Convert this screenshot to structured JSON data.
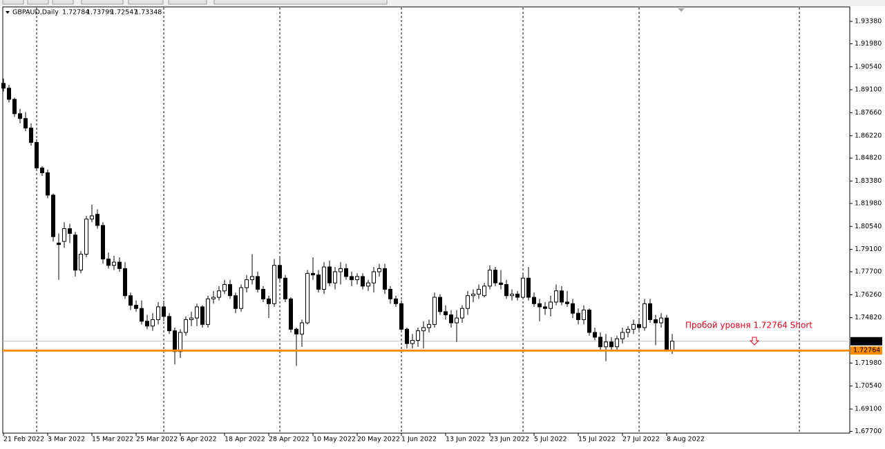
{
  "chart_data": {
    "type": "candlestick",
    "title": "GBPAUD,Daily",
    "bull_color": "#ffffff",
    "bear_color": "#000000",
    "outline_color": "#000000",
    "categories": [
      "21 Feb 2022",
      null,
      null,
      null,
      null,
      null,
      null,
      null,
      "3 Mar 2022",
      null,
      null,
      null,
      null,
      null,
      null,
      null,
      "15 Mar 2022",
      null,
      null,
      null,
      null,
      null,
      null,
      null,
      "25 Mar 2022",
      null,
      null,
      null,
      null,
      null,
      null,
      null,
      "6 Apr 2022",
      null,
      null,
      null,
      null,
      null,
      null,
      null,
      "18 Apr 2022",
      null,
      null,
      null,
      null,
      null,
      null,
      null,
      "28 Apr 2022",
      null,
      null,
      null,
      null,
      null,
      null,
      null,
      "10 May 2022",
      null,
      null,
      null,
      null,
      null,
      null,
      null,
      "20 May 2022",
      null,
      null,
      null,
      null,
      null,
      null,
      null,
      "1 Jun 2022",
      null,
      null,
      null,
      null,
      null,
      null,
      null,
      "13 Jun 2022",
      null,
      null,
      null,
      null,
      null,
      null,
      null,
      "23 Jun 2022",
      null,
      null,
      null,
      null,
      null,
      null,
      null,
      "5 Jul 2022",
      null,
      null,
      null,
      null,
      null,
      null,
      null,
      "15 Jul 2022",
      null,
      null,
      null,
      null,
      null,
      null,
      null,
      "27 Jul 2022",
      null,
      null,
      null,
      null,
      null,
      null,
      null,
      "8 Aug 2022",
      null
    ],
    "candles": [
      [
        1.895,
        1.898,
        1.89,
        1.892
      ],
      [
        1.892,
        1.894,
        1.883,
        1.885
      ],
      [
        1.885,
        1.886,
        1.874,
        1.876
      ],
      [
        1.876,
        1.879,
        1.87,
        1.873
      ],
      [
        1.873,
        1.877,
        1.865,
        1.867
      ],
      [
        1.867,
        1.87,
        1.856,
        1.858
      ],
      [
        1.858,
        1.86,
        1.84,
        1.842
      ],
      [
        1.842,
        1.843,
        1.837,
        1.839
      ],
      [
        1.839,
        1.841,
        1.823,
        1.825
      ],
      [
        1.825,
        1.826,
        1.796,
        1.799
      ],
      [
        1.795,
        1.801,
        1.772,
        1.794
      ],
      [
        1.796,
        1.808,
        1.792,
        1.804
      ],
      [
        1.804,
        1.807,
        1.795,
        1.801
      ],
      [
        1.8,
        1.802,
        1.774,
        1.778
      ],
      [
        1.778,
        1.79,
        1.776,
        1.788
      ],
      [
        1.788,
        1.812,
        1.786,
        1.81
      ],
      [
        1.81,
        1.819,
        1.808,
        1.812
      ],
      [
        1.813,
        1.816,
        1.804,
        1.806
      ],
      [
        1.806,
        1.808,
        1.782,
        1.785
      ],
      [
        1.785,
        1.789,
        1.779,
        1.781
      ],
      [
        1.781,
        1.787,
        1.778,
        1.783
      ],
      [
        1.783,
        1.786,
        1.777,
        1.779
      ],
      [
        1.779,
        1.783,
        1.76,
        1.762
      ],
      [
        1.762,
        1.764,
        1.753,
        1.756
      ],
      [
        1.756,
        1.759,
        1.752,
        1.754
      ],
      [
        1.754,
        1.759,
        1.744,
        1.746
      ],
      [
        1.746,
        1.75,
        1.741,
        1.743
      ],
      [
        1.743,
        1.751,
        1.74,
        1.747
      ],
      [
        1.747,
        1.758,
        1.744,
        1.755
      ],
      [
        1.755,
        1.759,
        1.746,
        1.749
      ],
      [
        1.749,
        1.751,
        1.738,
        1.74
      ],
      [
        1.74,
        1.742,
        1.719,
        1.727
      ],
      [
        1.727,
        1.741,
        1.723,
        1.739
      ],
      [
        1.739,
        1.749,
        1.737,
        1.747
      ],
      [
        1.747,
        1.752,
        1.743,
        1.748
      ],
      [
        1.748,
        1.757,
        1.743,
        1.755
      ],
      [
        1.755,
        1.756,
        1.742,
        1.744
      ],
      [
        1.744,
        1.762,
        1.742,
        1.76
      ],
      [
        1.76,
        1.765,
        1.757,
        1.761
      ],
      [
        1.761,
        1.768,
        1.759,
        1.765
      ],
      [
        1.765,
        1.772,
        1.763,
        1.769
      ],
      [
        1.769,
        1.772,
        1.76,
        1.762
      ],
      [
        1.762,
        1.764,
        1.751,
        1.754
      ],
      [
        1.754,
        1.769,
        1.752,
        1.767
      ],
      [
        1.767,
        1.775,
        1.764,
        1.772
      ],
      [
        1.772,
        1.788,
        1.769,
        1.774
      ],
      [
        1.774,
        1.777,
        1.764,
        1.766
      ],
      [
        1.766,
        1.768,
        1.758,
        1.76
      ],
      [
        1.76,
        1.762,
        1.748,
        1.757
      ],
      [
        1.757,
        1.785,
        1.755,
        1.781
      ],
      [
        1.781,
        1.786,
        1.771,
        1.773
      ],
      [
        1.773,
        1.775,
        1.758,
        1.76
      ],
      [
        1.76,
        1.761,
        1.739,
        1.741
      ],
      [
        1.741,
        1.742,
        1.718,
        1.738
      ],
      [
        1.738,
        1.747,
        1.73,
        1.745
      ],
      [
        1.745,
        1.778,
        1.744,
        1.776
      ],
      [
        1.776,
        1.786,
        1.772,
        1.775
      ],
      [
        1.775,
        1.778,
        1.764,
        1.766
      ],
      [
        1.766,
        1.783,
        1.763,
        1.78
      ],
      [
        1.78,
        1.784,
        1.768,
        1.77
      ],
      [
        1.77,
        1.78,
        1.766,
        1.777
      ],
      [
        1.777,
        1.783,
        1.769,
        1.779
      ],
      [
        1.779,
        1.782,
        1.772,
        1.774
      ],
      [
        1.774,
        1.777,
        1.768,
        1.772
      ],
      [
        1.772,
        1.776,
        1.769,
        1.774
      ],
      [
        1.774,
        1.776,
        1.766,
        1.768
      ],
      [
        1.768,
        1.772,
        1.765,
        1.77
      ],
      [
        1.77,
        1.78,
        1.764,
        1.777
      ],
      [
        1.777,
        1.782,
        1.774,
        1.779
      ],
      [
        1.779,
        1.782,
        1.763,
        1.766
      ],
      [
        1.766,
        1.768,
        1.757,
        1.76
      ],
      [
        1.76,
        1.762,
        1.755,
        1.757
      ],
      [
        1.757,
        1.759,
        1.739,
        1.741
      ],
      [
        1.741,
        1.742,
        1.729,
        1.732
      ],
      [
        1.732,
        1.738,
        1.729,
        1.734
      ],
      [
        1.734,
        1.742,
        1.73,
        1.74
      ],
      [
        1.74,
        1.746,
        1.729,
        1.742
      ],
      [
        1.742,
        1.747,
        1.739,
        1.744
      ],
      [
        1.744,
        1.764,
        1.742,
        1.761
      ],
      [
        1.761,
        1.763,
        1.75,
        1.752
      ],
      [
        1.752,
        1.756,
        1.747,
        1.75
      ],
      [
        1.75,
        1.753,
        1.742,
        1.745
      ],
      [
        1.745,
        1.753,
        1.733,
        1.748
      ],
      [
        1.748,
        1.756,
        1.745,
        1.754
      ],
      [
        1.754,
        1.765,
        1.75,
        1.762
      ],
      [
        1.762,
        1.766,
        1.758,
        1.763
      ],
      [
        1.763,
        1.769,
        1.76,
        1.766
      ],
      [
        1.762,
        1.77,
        1.761,
        1.768
      ],
      [
        1.768,
        1.781,
        1.766,
        1.778
      ],
      [
        1.778,
        1.78,
        1.768,
        1.77
      ],
      [
        1.77,
        1.778,
        1.766,
        1.769
      ],
      [
        1.769,
        1.772,
        1.76,
        1.762
      ],
      [
        1.762,
        1.766,
        1.759,
        1.763
      ],
      [
        1.763,
        1.765,
        1.759,
        1.761
      ],
      [
        1.761,
        1.776,
        1.76,
        1.773
      ],
      [
        1.773,
        1.78,
        1.759,
        1.761
      ],
      [
        1.761,
        1.764,
        1.755,
        1.757
      ],
      [
        1.757,
        1.76,
        1.746,
        1.755
      ],
      [
        1.755,
        1.758,
        1.75,
        1.754
      ],
      [
        1.754,
        1.762,
        1.749,
        1.758
      ],
      [
        1.758,
        1.769,
        1.756,
        1.765
      ],
      [
        1.765,
        1.768,
        1.756,
        1.758
      ],
      [
        1.758,
        1.765,
        1.755,
        1.757
      ],
      [
        1.757,
        1.76,
        1.748,
        1.751
      ],
      [
        1.751,
        1.754,
        1.744,
        1.747
      ],
      [
        1.747,
        1.756,
        1.744,
        1.753
      ],
      [
        1.753,
        1.754,
        1.737,
        1.739
      ],
      [
        1.739,
        1.742,
        1.734,
        1.736
      ],
      [
        1.736,
        1.739,
        1.728,
        1.73
      ],
      [
        1.73,
        1.738,
        1.721,
        1.733
      ],
      [
        1.733,
        1.736,
        1.728,
        1.73
      ],
      [
        1.73,
        1.737,
        1.728,
        1.735
      ],
      [
        1.735,
        1.742,
        1.732,
        1.739
      ],
      [
        1.739,
        1.743,
        1.736,
        1.741
      ],
      [
        1.741,
        1.747,
        1.738,
        1.744
      ],
      [
        1.744,
        1.748,
        1.739,
        1.742
      ],
      [
        1.742,
        1.76,
        1.74,
        1.757
      ],
      [
        1.757,
        1.76,
        1.745,
        1.747
      ],
      [
        1.747,
        1.75,
        1.731,
        1.745
      ],
      [
        1.745,
        1.751,
        1.742,
        1.748
      ],
      [
        1.748,
        1.75,
        1.727,
        1.72784
      ],
      [
        1.72784,
        1.73799,
        1.72547,
        1.73348
      ]
    ],
    "ylim": [
      1.6759,
      1.9429
    ],
    "yticks": [
      {
        "value": 1.9338,
        "label": "1.93380"
      },
      {
        "value": 1.9198,
        "label": "1.91980"
      },
      {
        "value": 1.9054,
        "label": "1.90540"
      },
      {
        "value": 1.891,
        "label": "1.89100"
      },
      {
        "value": 1.8766,
        "label": "1.87660"
      },
      {
        "value": 1.8622,
        "label": "1.86220"
      },
      {
        "value": 1.8482,
        "label": "1.84820"
      },
      {
        "value": 1.8338,
        "label": "1.83380"
      },
      {
        "value": 1.8198,
        "label": "1.81980"
      },
      {
        "value": 1.8054,
        "label": "1.80540"
      },
      {
        "value": 1.791,
        "label": "1.79100"
      },
      {
        "value": 1.777,
        "label": "1.77700"
      },
      {
        "value": 1.7626,
        "label": "1.76260"
      },
      {
        "value": 1.7482,
        "label": "1.74820"
      },
      {
        "value": 1.7198,
        "label": "1.71980"
      },
      {
        "value": 1.7054,
        "label": "1.70540"
      },
      {
        "value": 1.691,
        "label": "1.69100"
      },
      {
        "value": 1.677,
        "label": "1.67700"
      }
    ],
    "levels": [
      {
        "value": 1.72764,
        "color": "#ff8c00"
      }
    ],
    "annotations": [
      {
        "text": "Пробой уровня 1.72764 Short",
        "color": "#e8001c"
      }
    ]
  }
}
